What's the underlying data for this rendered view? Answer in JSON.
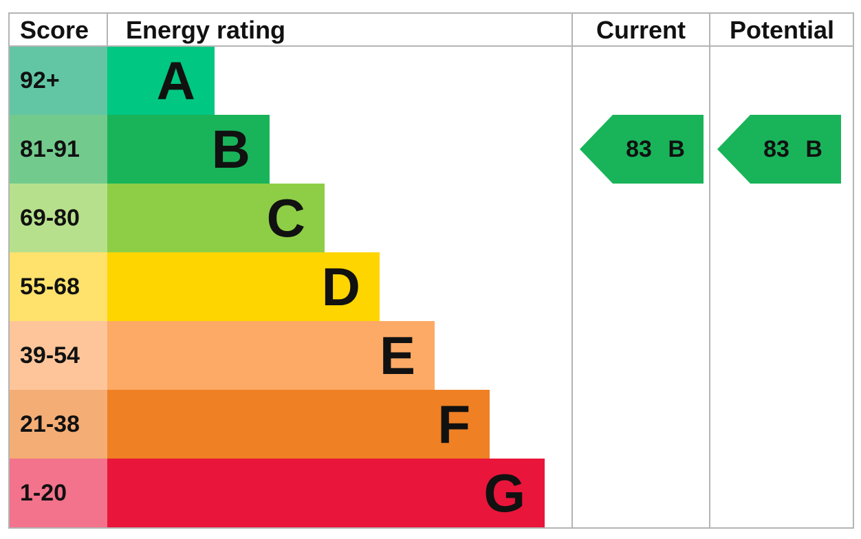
{
  "chart_data": {
    "type": "bar",
    "headers": {
      "score": "Score",
      "rating": "Energy rating",
      "current": "Current",
      "potential": "Potential"
    },
    "bands": [
      {
        "score": "92+",
        "letter": "A",
        "color": "#00c781",
        "score_color": "#62c6a4"
      },
      {
        "score": "81-91",
        "letter": "B",
        "color": "#19b459",
        "score_color": "#72cb8d"
      },
      {
        "score": "69-80",
        "letter": "C",
        "color": "#8dce46",
        "score_color": "#b7e08c"
      },
      {
        "score": "55-68",
        "letter": "D",
        "color": "#ffd500",
        "score_color": "#ffe26b"
      },
      {
        "score": "39-54",
        "letter": "E",
        "color": "#fcaa65",
        "score_color": "#fec59a"
      },
      {
        "score": "21-38",
        "letter": "F",
        "color": "#ef8023",
        "score_color": "#f4ad74"
      },
      {
        "score": "1-20",
        "letter": "G",
        "color": "#e9153b",
        "score_color": "#f3738c"
      }
    ],
    "current": {
      "value": 83,
      "band": "B",
      "label": "83 B",
      "color": "#19b459"
    },
    "potential": {
      "value": 83,
      "band": "B",
      "label": "83 B",
      "color": "#19b459"
    }
  }
}
